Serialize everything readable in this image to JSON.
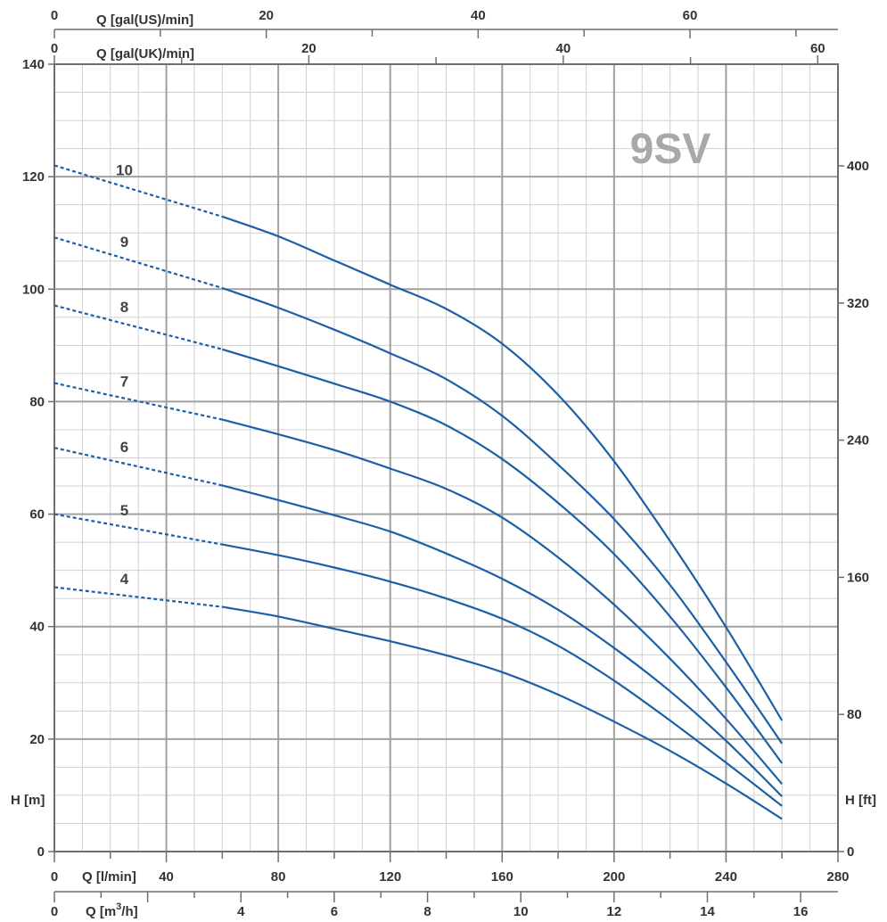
{
  "chart_data": {
    "type": "line",
    "model": "9SV",
    "grid": true,
    "x_axis": {
      "label": "Q [l/min]",
      "range": [
        0,
        280
      ],
      "ticks": [
        0,
        40,
        80,
        120,
        160,
        200,
        240,
        280
      ]
    },
    "x_axis_m3h": {
      "label": "Q [m3/h]",
      "label_main": "Q [m",
      "label_sup": "3",
      "label_end": "/h]",
      "range": [
        0,
        16.8
      ],
      "ticks": [
        0,
        2,
        4,
        6,
        8,
        10,
        12,
        14,
        16
      ]
    },
    "x_axis_gal_us": {
      "label": "Q [gal(US)/min]",
      "ticks": [
        0,
        20,
        40,
        60
      ],
      "minor_ticks": [
        10,
        30,
        50,
        70
      ]
    },
    "x_axis_gal_uk": {
      "label": "Q [gal(UK)/min]",
      "ticks": [
        0,
        20,
        40,
        60
      ],
      "minor_ticks": [
        10,
        30,
        50
      ]
    },
    "y_axis": {
      "label": "H [m]",
      "range": [
        0,
        140
      ],
      "ticks": [
        0,
        20,
        40,
        60,
        80,
        100,
        120,
        140
      ]
    },
    "y_axis_ft": {
      "label": "H [ft]",
      "ticks": [
        0,
        80,
        160,
        240,
        320,
        400
      ]
    },
    "series": [
      {
        "name": "4",
        "dashed": [
          [
            0,
            47
          ],
          [
            60,
            43.5
          ]
        ],
        "solid": [
          [
            60,
            43.5
          ],
          [
            80,
            41.8
          ],
          [
            100,
            39.6
          ],
          [
            120,
            37.4
          ],
          [
            140,
            34.9
          ],
          [
            160,
            31.9
          ],
          [
            180,
            27.9
          ],
          [
            200,
            23.1
          ],
          [
            220,
            17.9
          ],
          [
            240,
            12.1
          ],
          [
            260,
            5.8
          ]
        ]
      },
      {
        "name": "5",
        "dashed": [
          [
            0,
            60
          ],
          [
            60,
            54.6
          ]
        ],
        "solid": [
          [
            60,
            54.6
          ],
          [
            80,
            52.7
          ],
          [
            100,
            50.5
          ],
          [
            120,
            48.0
          ],
          [
            140,
            45.0
          ],
          [
            160,
            41.4
          ],
          [
            180,
            36.6
          ],
          [
            200,
            30.4
          ],
          [
            220,
            23.3
          ],
          [
            240,
            15.8
          ],
          [
            260,
            8.1
          ]
        ]
      },
      {
        "name": "6",
        "dashed": [
          [
            0,
            71.8
          ],
          [
            60,
            65.1
          ]
        ],
        "solid": [
          [
            60,
            65.1
          ],
          [
            80,
            62.5
          ],
          [
            100,
            59.8
          ],
          [
            120,
            56.9
          ],
          [
            140,
            53.0
          ],
          [
            160,
            48.5
          ],
          [
            180,
            43.0
          ],
          [
            200,
            36.2
          ],
          [
            220,
            28.5
          ],
          [
            240,
            19.7
          ],
          [
            260,
            9.8
          ]
        ]
      },
      {
        "name": "7",
        "dashed": [
          [
            0,
            83.3
          ],
          [
            60,
            76.8
          ]
        ],
        "solid": [
          [
            60,
            76.8
          ],
          [
            80,
            74.2
          ],
          [
            100,
            71.4
          ],
          [
            120,
            68.1
          ],
          [
            140,
            64.5
          ],
          [
            160,
            59.4
          ],
          [
            180,
            52.3
          ],
          [
            200,
            43.9
          ],
          [
            220,
            34.3
          ],
          [
            240,
            23.6
          ],
          [
            260,
            12.0
          ]
        ]
      },
      {
        "name": "8",
        "dashed": [
          [
            0,
            97.1
          ],
          [
            60,
            89.3
          ]
        ],
        "solid": [
          [
            60,
            89.3
          ],
          [
            80,
            86.3
          ],
          [
            100,
            83.2
          ],
          [
            120,
            80.0
          ],
          [
            140,
            75.8
          ],
          [
            160,
            69.8
          ],
          [
            180,
            62.0
          ],
          [
            200,
            52.9
          ],
          [
            220,
            41.8
          ],
          [
            240,
            29.2
          ],
          [
            260,
            15.7
          ]
        ]
      },
      {
        "name": "9",
        "dashed": [
          [
            0,
            109.2
          ],
          [
            60,
            100.2
          ]
        ],
        "solid": [
          [
            60,
            100.2
          ],
          [
            80,
            96.7
          ],
          [
            100,
            92.8
          ],
          [
            120,
            88.6
          ],
          [
            140,
            84.0
          ],
          [
            160,
            77.5
          ],
          [
            180,
            68.8
          ],
          [
            200,
            59.1
          ],
          [
            220,
            47.4
          ],
          [
            240,
            33.7
          ],
          [
            260,
            19.2
          ]
        ]
      },
      {
        "name": "10",
        "dashed": [
          [
            0,
            122
          ],
          [
            60,
            112.9
          ]
        ],
        "solid": [
          [
            60,
            112.9
          ],
          [
            80,
            109.4
          ],
          [
            100,
            105.1
          ],
          [
            120,
            100.8
          ],
          [
            140,
            96.5
          ],
          [
            160,
            90.3
          ],
          [
            180,
            81.2
          ],
          [
            200,
            69.4
          ],
          [
            220,
            55.2
          ],
          [
            240,
            39.9
          ],
          [
            260,
            23.3
          ]
        ]
      }
    ],
    "colors": {
      "curve": "#1b5fa6",
      "grid_major": "#a0a0a0",
      "grid_minor": "#cfcfcf",
      "frame": "#6e6e6e",
      "text": "#333333",
      "model": "#a8a8a8"
    }
  }
}
